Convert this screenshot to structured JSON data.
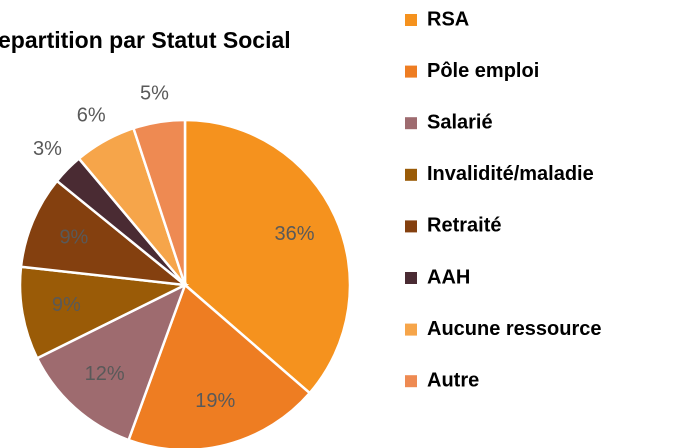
{
  "chart_data": {
    "type": "pie",
    "title": "epartition par Statut Social",
    "categories": [
      "RSA",
      "Pôle emploi",
      "Salarié",
      "Invalidité/maladie",
      "Retraité",
      "AAH",
      "Aucune ressource",
      "Autre"
    ],
    "values": [
      36,
      19,
      12,
      9,
      9,
      3,
      6,
      5
    ],
    "value_labels": [
      "36%",
      "19%",
      "12%",
      "9%",
      "9%",
      "3%",
      "6%",
      "5%"
    ],
    "colors": [
      "#f5921e",
      "#ee7d22",
      "#9e6b6f",
      "#9a5b07",
      "#84400f",
      "#4a2b33",
      "#f6a54a",
      "#ee8a52"
    ],
    "legend": "right"
  }
}
